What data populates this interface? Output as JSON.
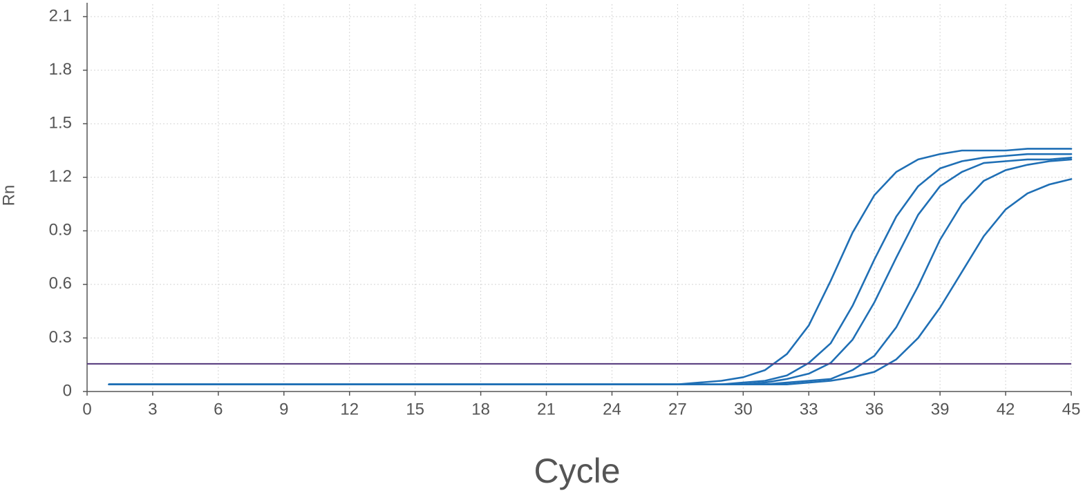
{
  "chart_data": {
    "type": "line",
    "x_label": "Cycle",
    "y_label": "Rn",
    "x": [
      1,
      2,
      3,
      4,
      5,
      6,
      7,
      8,
      9,
      10,
      11,
      12,
      13,
      14,
      15,
      16,
      17,
      18,
      19,
      20,
      21,
      22,
      23,
      24,
      25,
      26,
      27,
      28,
      29,
      30,
      31,
      32,
      33,
      34,
      35,
      36,
      37,
      38,
      39,
      40,
      41,
      42,
      43,
      44,
      45
    ],
    "series": [
      {
        "color": "#1f6fb5",
        "values": [
          0.04,
          0.04,
          0.04,
          0.04,
          0.04,
          0.04,
          0.04,
          0.04,
          0.04,
          0.04,
          0.04,
          0.04,
          0.04,
          0.04,
          0.04,
          0.04,
          0.04,
          0.04,
          0.04,
          0.04,
          0.04,
          0.04,
          0.04,
          0.04,
          0.04,
          0.04,
          0.04,
          0.05,
          0.06,
          0.08,
          0.12,
          0.21,
          0.37,
          0.62,
          0.89,
          1.1,
          1.23,
          1.3,
          1.33,
          1.35,
          1.35,
          1.35,
          1.36,
          1.36,
          1.36
        ]
      },
      {
        "color": "#1f6fb5",
        "values": [
          0.04,
          0.04,
          0.04,
          0.04,
          0.04,
          0.04,
          0.04,
          0.04,
          0.04,
          0.04,
          0.04,
          0.04,
          0.04,
          0.04,
          0.04,
          0.04,
          0.04,
          0.04,
          0.04,
          0.04,
          0.04,
          0.04,
          0.04,
          0.04,
          0.04,
          0.04,
          0.04,
          0.04,
          0.04,
          0.05,
          0.06,
          0.09,
          0.16,
          0.27,
          0.48,
          0.74,
          0.98,
          1.15,
          1.25,
          1.29,
          1.31,
          1.32,
          1.33,
          1.33,
          1.33
        ]
      },
      {
        "color": "#1f6fb5",
        "values": [
          0.04,
          0.04,
          0.04,
          0.04,
          0.04,
          0.04,
          0.04,
          0.04,
          0.04,
          0.04,
          0.04,
          0.04,
          0.04,
          0.04,
          0.04,
          0.04,
          0.04,
          0.04,
          0.04,
          0.04,
          0.04,
          0.04,
          0.04,
          0.04,
          0.04,
          0.04,
          0.04,
          0.04,
          0.04,
          0.04,
          0.05,
          0.07,
          0.1,
          0.16,
          0.29,
          0.5,
          0.75,
          0.99,
          1.15,
          1.23,
          1.28,
          1.29,
          1.3,
          1.3,
          1.31
        ]
      },
      {
        "color": "#1f6fb5",
        "values": [
          0.04,
          0.04,
          0.04,
          0.04,
          0.04,
          0.04,
          0.04,
          0.04,
          0.04,
          0.04,
          0.04,
          0.04,
          0.04,
          0.04,
          0.04,
          0.04,
          0.04,
          0.04,
          0.04,
          0.04,
          0.04,
          0.04,
          0.04,
          0.04,
          0.04,
          0.04,
          0.04,
          0.04,
          0.04,
          0.04,
          0.04,
          0.05,
          0.06,
          0.07,
          0.12,
          0.2,
          0.36,
          0.59,
          0.85,
          1.05,
          1.18,
          1.24,
          1.27,
          1.29,
          1.3
        ]
      },
      {
        "color": "#1f6fb5",
        "values": [
          0.04,
          0.04,
          0.04,
          0.04,
          0.04,
          0.04,
          0.04,
          0.04,
          0.04,
          0.04,
          0.04,
          0.04,
          0.04,
          0.04,
          0.04,
          0.04,
          0.04,
          0.04,
          0.04,
          0.04,
          0.04,
          0.04,
          0.04,
          0.04,
          0.04,
          0.04,
          0.04,
          0.04,
          0.04,
          0.04,
          0.04,
          0.04,
          0.05,
          0.06,
          0.08,
          0.11,
          0.18,
          0.3,
          0.47,
          0.67,
          0.87,
          1.02,
          1.11,
          1.16,
          1.19
        ]
      }
    ],
    "threshold": 0.155,
    "threshold_color": "#5a3f80",
    "xlim": [
      0,
      45
    ],
    "xticks": [
      0,
      3,
      6,
      9,
      12,
      15,
      18,
      21,
      24,
      27,
      30,
      33,
      36,
      39,
      42,
      45
    ],
    "ylim": [
      0,
      2.17
    ],
    "yticks": [
      0,
      0.3,
      0.6,
      0.9,
      1.2,
      1.5,
      1.8,
      2.1
    ],
    "grid": true
  }
}
